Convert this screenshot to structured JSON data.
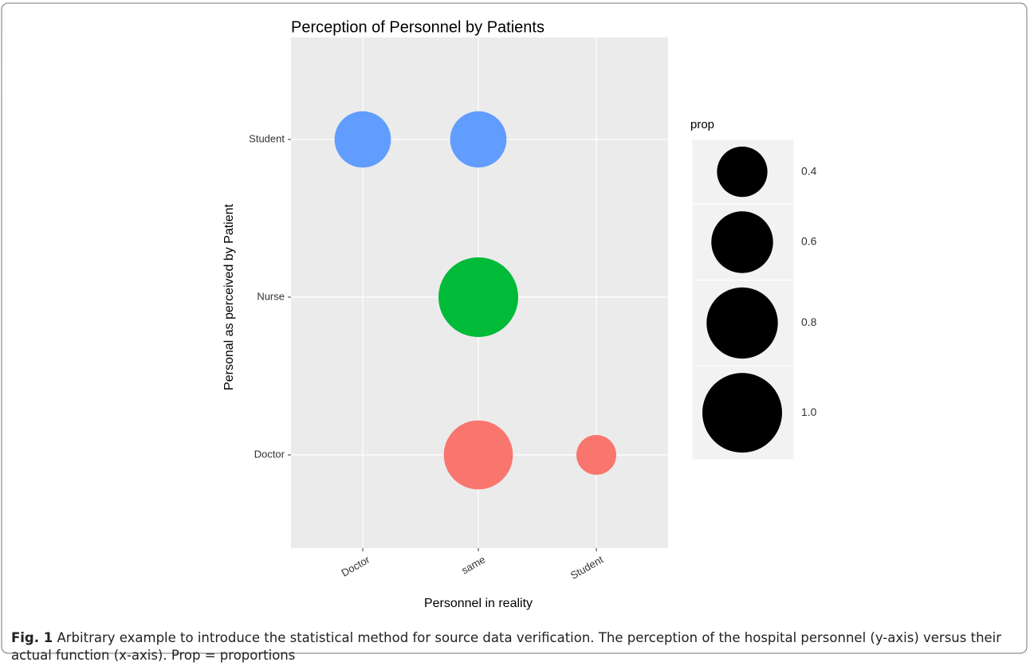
{
  "chart_data": {
    "type": "bubble",
    "title": "Perception of Personnel by Patients",
    "x_label": "Personnel in reality",
    "y_label": "Personal as perceived by Patient",
    "x_categories": [
      "Doctor",
      "same",
      "Student"
    ],
    "y_categories": [
      "Doctor",
      "Nurse",
      "Student"
    ],
    "colors": [
      "#F8766D",
      "#00BA38",
      "#619CFF"
    ],
    "values": [
      [
        null,
        0.75,
        0.25
      ],
      [
        null,
        1,
        null
      ],
      [
        0.5,
        0.5,
        null
      ]
    ],
    "grid": true,
    "size_legend": {
      "title": "prop",
      "color": "#000000",
      "values": [
        0.4,
        0.6,
        0.8,
        {
          "value": 1,
          "label": "1.0"
        }
      ]
    }
  },
  "caption": {
    "label": "Fig. 1",
    "text": "Arbitrary example to introduce the statistical method for source data verification. The perception of the hospital personnel (y-axis) versus their actual function (x-axis). Prop = proportions"
  }
}
